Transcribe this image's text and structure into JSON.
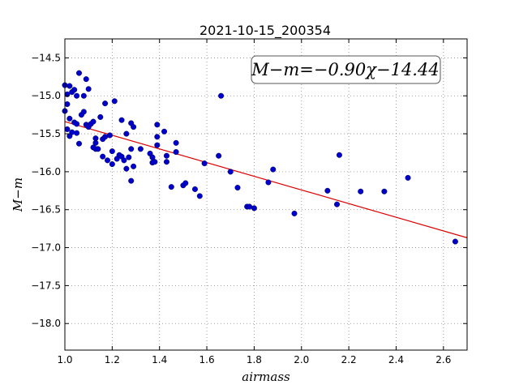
{
  "chart_data": {
    "type": "scatter",
    "title": "2021-10-15_200354",
    "xlabel": "airmass",
    "ylabel": "M−m",
    "xlim": [
      1.0,
      2.7
    ],
    "ylim": [
      -18.35,
      -14.25
    ],
    "y_inverted": true,
    "grid": true,
    "x_ticks": [
      1.0,
      1.2,
      1.4,
      1.6,
      1.8,
      2.0,
      2.2,
      2.4,
      2.6
    ],
    "x_tick_labels": [
      "1.0",
      "1.2",
      "1.4",
      "1.6",
      "1.8",
      "2.0",
      "2.2",
      "2.4",
      "2.6"
    ],
    "y_ticks": [
      -14.5,
      -15.0,
      -15.5,
      -16.0,
      -16.5,
      -17.0,
      -17.5,
      -18.0
    ],
    "y_tick_labels": [
      "−14.5",
      "−15.0",
      "−15.5",
      "−16.0",
      "−16.5",
      "−17.0",
      "−17.5",
      "−18.0"
    ],
    "annotation": "M−m=−0.90χ−14.44",
    "fit": {
      "slope": -0.9,
      "intercept": -14.44,
      "color": "#e00000"
    },
    "point_color": "#0000cc",
    "x": [
      1.0,
      1.0,
      1.01,
      1.01,
      1.01,
      1.02,
      1.02,
      1.02,
      1.03,
      1.03,
      1.04,
      1.04,
      1.05,
      1.05,
      1.05,
      1.06,
      1.06,
      1.07,
      1.08,
      1.08,
      1.09,
      1.09,
      1.1,
      1.1,
      1.11,
      1.12,
      1.12,
      1.13,
      1.13,
      1.13,
      1.14,
      1.15,
      1.16,
      1.16,
      1.17,
      1.17,
      1.18,
      1.19,
      1.2,
      1.2,
      1.21,
      1.22,
      1.23,
      1.24,
      1.24,
      1.25,
      1.26,
      1.26,
      1.27,
      1.28,
      1.28,
      1.28,
      1.29,
      1.29,
      1.32,
      1.36,
      1.37,
      1.37,
      1.38,
      1.39,
      1.39,
      1.39,
      1.42,
      1.43,
      1.43,
      1.45,
      1.47,
      1.47,
      1.5,
      1.51,
      1.55,
      1.57,
      1.59,
      1.65,
      1.66,
      1.7,
      1.73,
      1.77,
      1.78,
      1.8,
      1.86,
      1.88,
      1.97,
      2.11,
      2.15,
      2.16,
      2.25,
      2.35,
      2.45,
      2.65
    ],
    "y": [
      -14.86,
      -15.2,
      -15.11,
      -14.98,
      -15.44,
      -14.87,
      -15.3,
      -15.53,
      -15.48,
      -14.95,
      -15.35,
      -14.92,
      -15.37,
      -15.49,
      -15.0,
      -14.7,
      -15.63,
      -15.25,
      -15.0,
      -15.21,
      -14.78,
      -15.38,
      -14.91,
      -15.41,
      -15.37,
      -15.34,
      -15.68,
      -15.56,
      -15.62,
      -15.7,
      -15.7,
      -15.28,
      -15.57,
      -15.8,
      -15.54,
      -15.1,
      -15.85,
      -15.52,
      -15.73,
      -15.9,
      -15.07,
      -15.83,
      -15.78,
      -15.32,
      -15.8,
      -15.85,
      -15.5,
      -15.96,
      -15.81,
      -15.36,
      -15.7,
      -16.12,
      -15.93,
      -15.41,
      -15.7,
      -15.76,
      -15.81,
      -15.88,
      -15.87,
      -15.38,
      -15.54,
      -15.65,
      -15.47,
      -15.79,
      -15.87,
      -16.2,
      -15.62,
      -15.74,
      -16.18,
      -16.15,
      -16.23,
      -16.32,
      -15.89,
      -15.79,
      -15.0,
      -16.0,
      -16.21,
      -16.46,
      -16.46,
      -16.48,
      -16.14,
      -15.97,
      -16.55,
      -16.25,
      -16.43,
      -15.78,
      -16.26,
      -16.26,
      -16.08,
      -16.92
    ]
  }
}
